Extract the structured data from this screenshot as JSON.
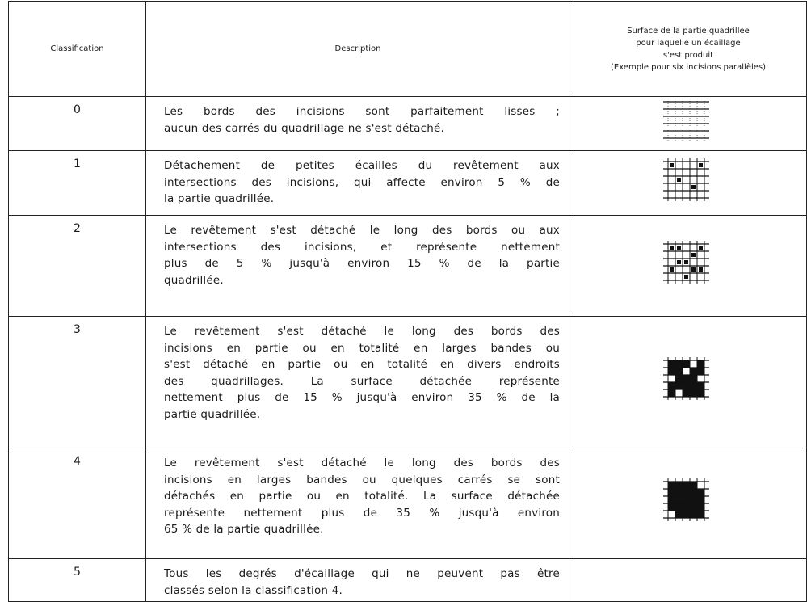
{
  "header": {
    "classification": "Classification",
    "description": "Description",
    "surface": [
      "Surface de la partie quadrillée",
      "pour laquelle un écaillage",
      "s'est produit",
      "(Exemple pour six incisions parallèles)"
    ]
  },
  "rows": [
    {
      "classification": "0",
      "description": [
        "Les bords des incisions sont parfaitement lisses ;",
        "aucun des carrés du quadrillage ne s'est détaché."
      ]
    },
    {
      "classification": "1",
      "description": [
        "Détachement de petites écailles du revêtement aux",
        "intersections des incisions, qui affecte environ 5 % de",
        "la partie quadrillée."
      ]
    },
    {
      "classification": "2",
      "description": [
        "Le revêtement s'est détaché le long des bords ou aux",
        "intersections des incisions, et représente nettement",
        "plus de 5 % jusqu'à environ 15 % de la partie",
        "quadrillée."
      ]
    },
    {
      "classification": "3",
      "description": [
        "Le revêtement s'est détaché le long des bords des",
        "incisions en partie ou en totalité en larges bandes ou",
        "s'est détaché en partie ou en totalité en divers endroits",
        "des quadrillages. La surface détachée représente",
        "nettement plus de 15 % jusqu'à environ 35 % de la",
        "partie quadrillée."
      ]
    },
    {
      "classification": "4",
      "description": [
        "Le revêtement s'est détaché le long des bords des",
        "incisions en larges bandes ou quelques carrés se sont",
        "détachés en partie ou en totalité. La surface détachée",
        "représente nettement plus de 35 % jusqu'à environ",
        "65 % de la partie quadrillée."
      ]
    },
    {
      "classification": "5",
      "description": [
        "Tous les degrés d'écaillage qui ne peuvent pas être",
        "classés selon la classification 4."
      ]
    }
  ]
}
